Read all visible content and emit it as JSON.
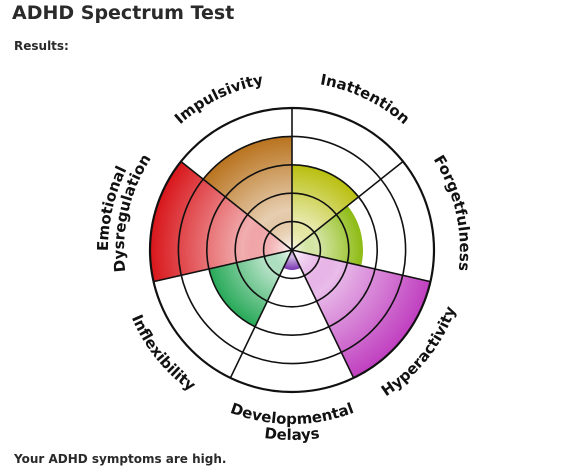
{
  "page": {
    "title": "ADHD Spectrum Test",
    "results_label": "Results:",
    "summary": "Your ADHD symptoms are high."
  },
  "chart_data": {
    "type": "radial-segment",
    "max_level": 5,
    "categories": [
      {
        "label_lines": [
          "Inattention"
        ],
        "value": 3,
        "color": "#b9bf0e"
      },
      {
        "label_lines": [
          "Forgetfulness"
        ],
        "value": 2.5,
        "color": "#8dbb12"
      },
      {
        "label_lines": [
          "Hyperactivity"
        ],
        "value": 5,
        "color": "#c03fc0"
      },
      {
        "label_lines": [
          "Developmental",
          "Delays"
        ],
        "value": 0.7,
        "color": "#7a35b0"
      },
      {
        "label_lines": [
          "Inflexibility"
        ],
        "value": 3,
        "color": "#27a958"
      },
      {
        "label_lines": [
          "Emotional",
          "Dysregulation"
        ],
        "value": 5,
        "color": "#d8161b"
      },
      {
        "label_lines": [
          "Impulsivity"
        ],
        "value": 4,
        "color": "#b9731e"
      }
    ]
  }
}
